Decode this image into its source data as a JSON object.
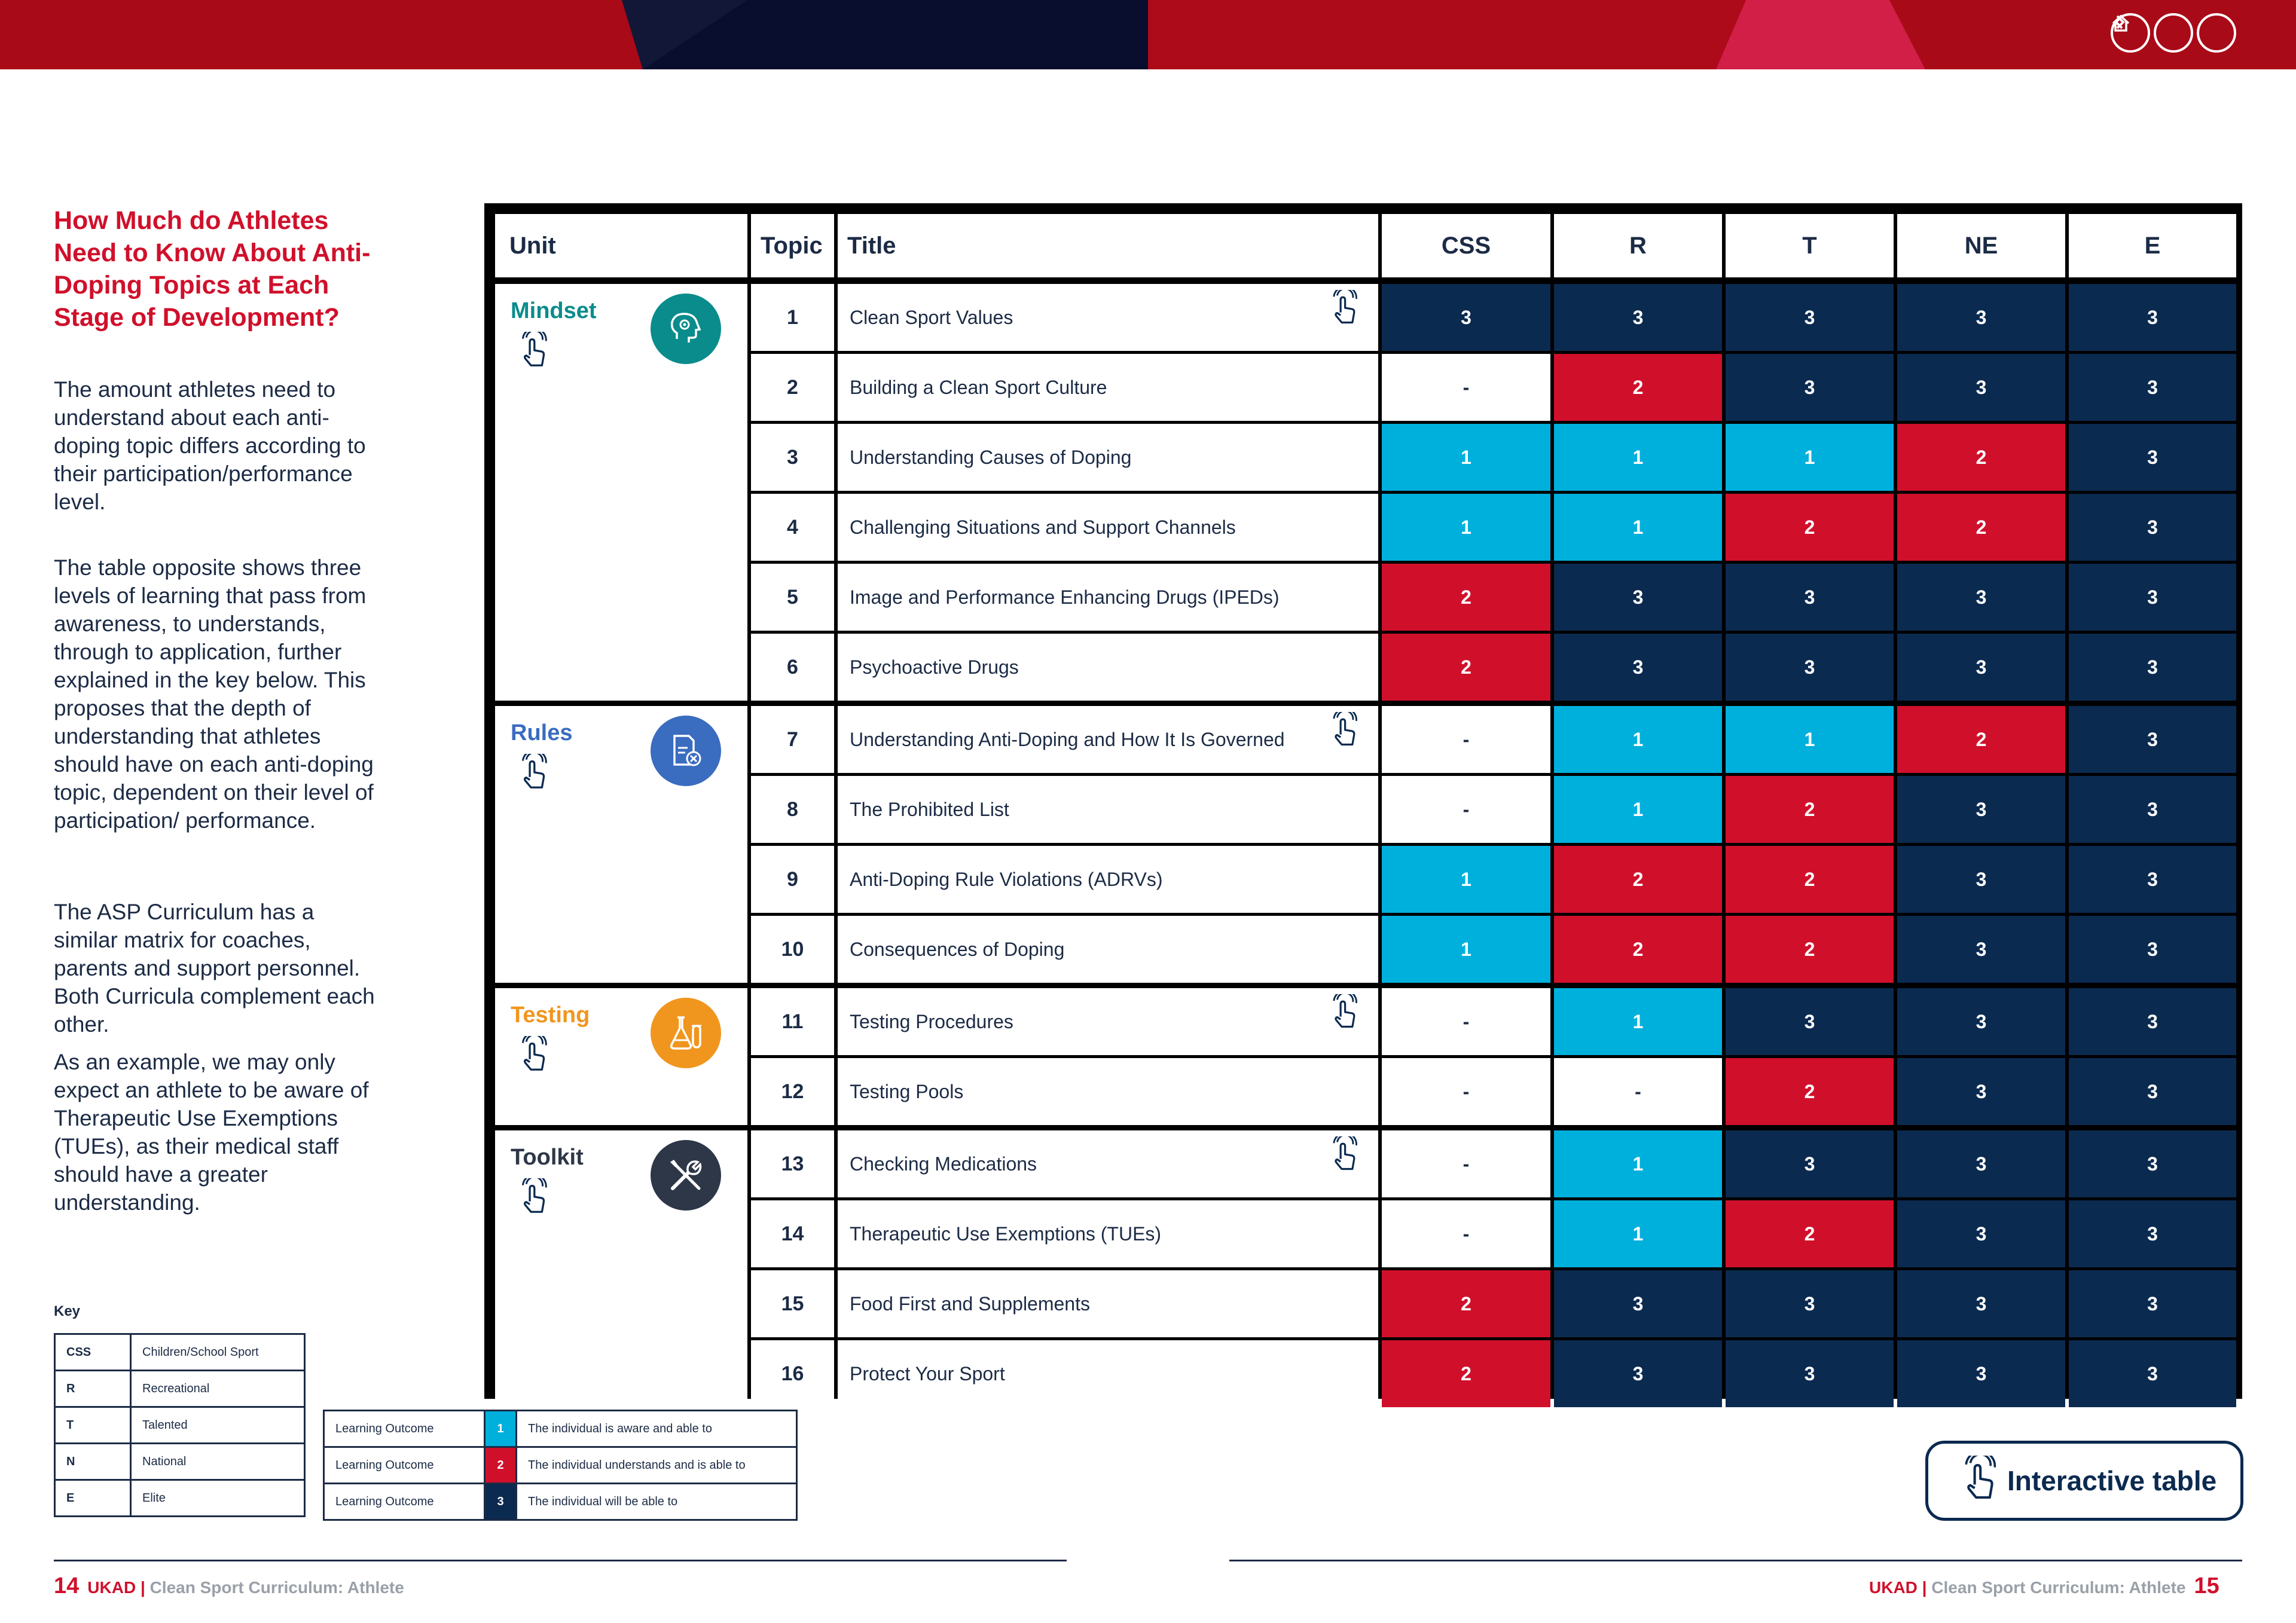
{
  "colors": {
    "level1": "#00b0dc",
    "level2": "#d0102b",
    "level3": "#0b2a50",
    "none": "#ffffff",
    "heading_red": "#d0102b",
    "mindset": "#0a8c8c",
    "rules": "#3a6cc0",
    "testing": "#f0961e",
    "toolkit": "#2e3748"
  },
  "heading": "How Much do Athletes Need to Know About Anti-Doping Topics at Each Stage of Development?",
  "paragraphs": [
    "The amount athletes need to understand about each anti-doping topic differs according to their participation/performance level.",
    "The table opposite shows three levels of learning that pass from awareness, to understands, through to application, further explained in the key below. This proposes that the depth of understanding that athletes should have on each anti-doping topic, dependent on their level of participation/ performance.",
    "The ASP Curriculum has a similar matrix for coaches, parents and support personnel. Both Curricula complement each other.",
    "As an example, we may only expect an athlete to be aware of Therapeutic Use Exemptions (TUEs), as their medical staff should have a greater understanding."
  ],
  "key": {
    "title": "Key",
    "levels": [
      {
        "abbr": "CSS",
        "full": "Children/School Sport"
      },
      {
        "abbr": "R",
        "full": "Recreational"
      },
      {
        "abbr": "T",
        "full": "Talented"
      },
      {
        "abbr": "N",
        "full": "National"
      },
      {
        "abbr": "E",
        "full": "Elite"
      }
    ],
    "outcomes": [
      {
        "label": "Learning Outcome",
        "num": "1",
        "desc": "The individual is aware and able to"
      },
      {
        "label": "Learning Outcome",
        "num": "2",
        "desc": "The individual understands and is able to"
      },
      {
        "label": "Learning Outcome",
        "num": "3",
        "desc": "The individual will be able to"
      }
    ]
  },
  "table": {
    "headers": [
      "Unit",
      "Topic",
      "Title",
      "CSS",
      "R",
      "T",
      "NE",
      "E"
    ],
    "units": [
      {
        "name": "Mindset",
        "icon": "brain-gear-icon",
        "color": "#0a8c8c",
        "rows": [
          0,
          5
        ]
      },
      {
        "name": "Rules",
        "icon": "document-cross-icon",
        "color": "#3a6cc0",
        "rows": [
          6,
          9
        ]
      },
      {
        "name": "Testing",
        "icon": "lab-flask-icon",
        "color": "#f0961e",
        "rows": [
          10,
          11
        ]
      },
      {
        "name": "Toolkit",
        "icon": "tools-icon",
        "color": "#2e3748",
        "rows": [
          12,
          15
        ]
      }
    ],
    "rows": [
      {
        "topic": "1",
        "title": "Clean Sport Values",
        "tap": true,
        "values": [
          "3",
          "3",
          "3",
          "3",
          "3"
        ]
      },
      {
        "topic": "2",
        "title": "Building a Clean Sport Culture",
        "tap": false,
        "values": [
          "-",
          "2",
          "3",
          "3",
          "3"
        ]
      },
      {
        "topic": "3",
        "title": "Understanding Causes of Doping",
        "tap": false,
        "values": [
          "1",
          "1",
          "1",
          "2",
          "3"
        ]
      },
      {
        "topic": "4",
        "title": "Challenging Situations and Support Channels",
        "tap": false,
        "values": [
          "1",
          "1",
          "2",
          "2",
          "3"
        ]
      },
      {
        "topic": "5",
        "title": "Image and Performance Enhancing Drugs (IPEDs)",
        "tap": false,
        "values": [
          "2",
          "3",
          "3",
          "3",
          "3"
        ]
      },
      {
        "topic": "6",
        "title": "Psychoactive Drugs",
        "tap": false,
        "values": [
          "2",
          "3",
          "3",
          "3",
          "3"
        ]
      },
      {
        "topic": "7",
        "title": "Understanding Anti-Doping and How It Is Governed",
        "tap": true,
        "values": [
          "-",
          "1",
          "1",
          "2",
          "3"
        ]
      },
      {
        "topic": "8",
        "title": "The Prohibited List",
        "tap": false,
        "values": [
          "-",
          "1",
          "2",
          "3",
          "3"
        ]
      },
      {
        "topic": "9",
        "title": "Anti-Doping Rule Violations (ADRVs)",
        "tap": false,
        "values": [
          "1",
          "2",
          "2",
          "3",
          "3"
        ]
      },
      {
        "topic": "10",
        "title": "Consequences of Doping",
        "tap": false,
        "values": [
          "1",
          "2",
          "2",
          "3",
          "3"
        ]
      },
      {
        "topic": "11",
        "title": "Testing Procedures",
        "tap": true,
        "values": [
          "-",
          "1",
          "3",
          "3",
          "3"
        ]
      },
      {
        "topic": "12",
        "title": "Testing Pools",
        "tap": false,
        "values": [
          "-",
          "-",
          "2",
          "3",
          "3"
        ]
      },
      {
        "topic": "13",
        "title": "Checking Medications",
        "tap": true,
        "values": [
          "-",
          "1",
          "3",
          "3",
          "3"
        ]
      },
      {
        "topic": "14",
        "title": "Therapeutic Use Exemptions (TUEs)",
        "tap": false,
        "values": [
          "-",
          "1",
          "2",
          "3",
          "3"
        ]
      },
      {
        "topic": "15",
        "title": "Food First and Supplements",
        "tap": false,
        "values": [
          "2",
          "3",
          "3",
          "3",
          "3"
        ]
      },
      {
        "topic": "16",
        "title": "Protect Your Sport",
        "tap": false,
        "values": [
          "2",
          "3",
          "3",
          "3",
          "3"
        ]
      }
    ]
  },
  "interactive_button": "Interactive table",
  "footer": {
    "left_page": "14",
    "right_page": "15",
    "brand": "UKAD",
    "separator": "|",
    "doc": "Clean Sport Curriculum: Athlete"
  },
  "nav": [
    "chevron-left-icon",
    "home-icon",
    "chevron-right-icon"
  ]
}
